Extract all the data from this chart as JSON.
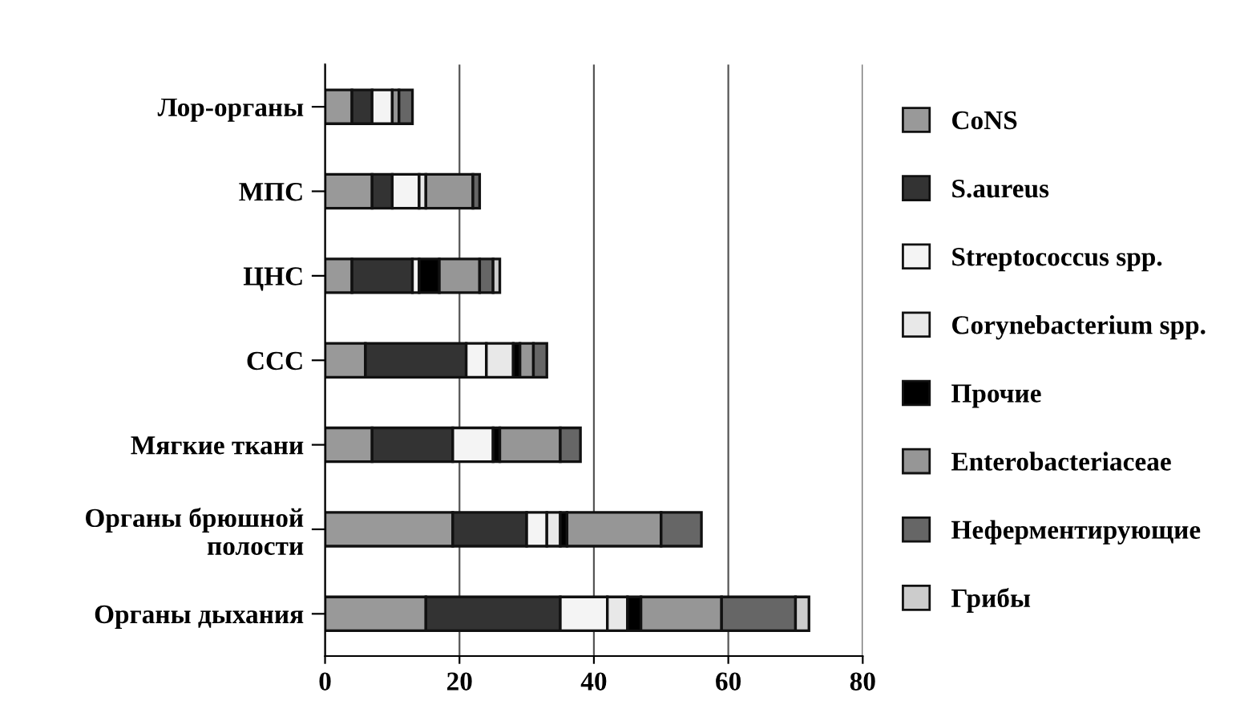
{
  "chart_data": {
    "type": "bar",
    "orientation": "horizontal",
    "stacked": true,
    "categories": [
      "Лор-органы",
      "МПС",
      "ЦНС",
      "ССС",
      "Мягкие ткани",
      "Органы брюшной\nполости",
      "Органы дыхания"
    ],
    "series": [
      {
        "name": "CoNS",
        "color": "#999999",
        "values": [
          4,
          7,
          4,
          6,
          7,
          19,
          15
        ]
      },
      {
        "name": "S.aureus",
        "color": "#333333",
        "values": [
          3,
          3,
          9,
          15,
          12,
          11,
          20
        ]
      },
      {
        "name": "Streptococcus spp.",
        "color": "#f4f4f4",
        "values": [
          3,
          4,
          1,
          3,
          6,
          3,
          7
        ]
      },
      {
        "name": "Corynebacterium spp.",
        "color": "#e8e8e8",
        "values": [
          0,
          1,
          0,
          4,
          0,
          2,
          3
        ]
      },
      {
        "name": "Прочие",
        "color": "#000000",
        "values": [
          0,
          0,
          3,
          1,
          1,
          1,
          2
        ]
      },
      {
        "name": "Enterobacteriaceae",
        "color": "#969696",
        "values": [
          1,
          7,
          6,
          2,
          9,
          14,
          12
        ]
      },
      {
        "name": "Неферментирующие",
        "color": "#666666",
        "values": [
          2,
          1,
          2,
          2,
          3,
          6,
          11
        ]
      },
      {
        "name": "Грибы",
        "color": "#cccccc",
        "values": [
          0,
          0,
          1,
          0,
          0,
          0,
          2
        ]
      }
    ],
    "xlim": [
      0,
      80
    ],
    "xticks": [
      0,
      20,
      40,
      60,
      80
    ],
    "grid": "x",
    "legend": "right"
  }
}
